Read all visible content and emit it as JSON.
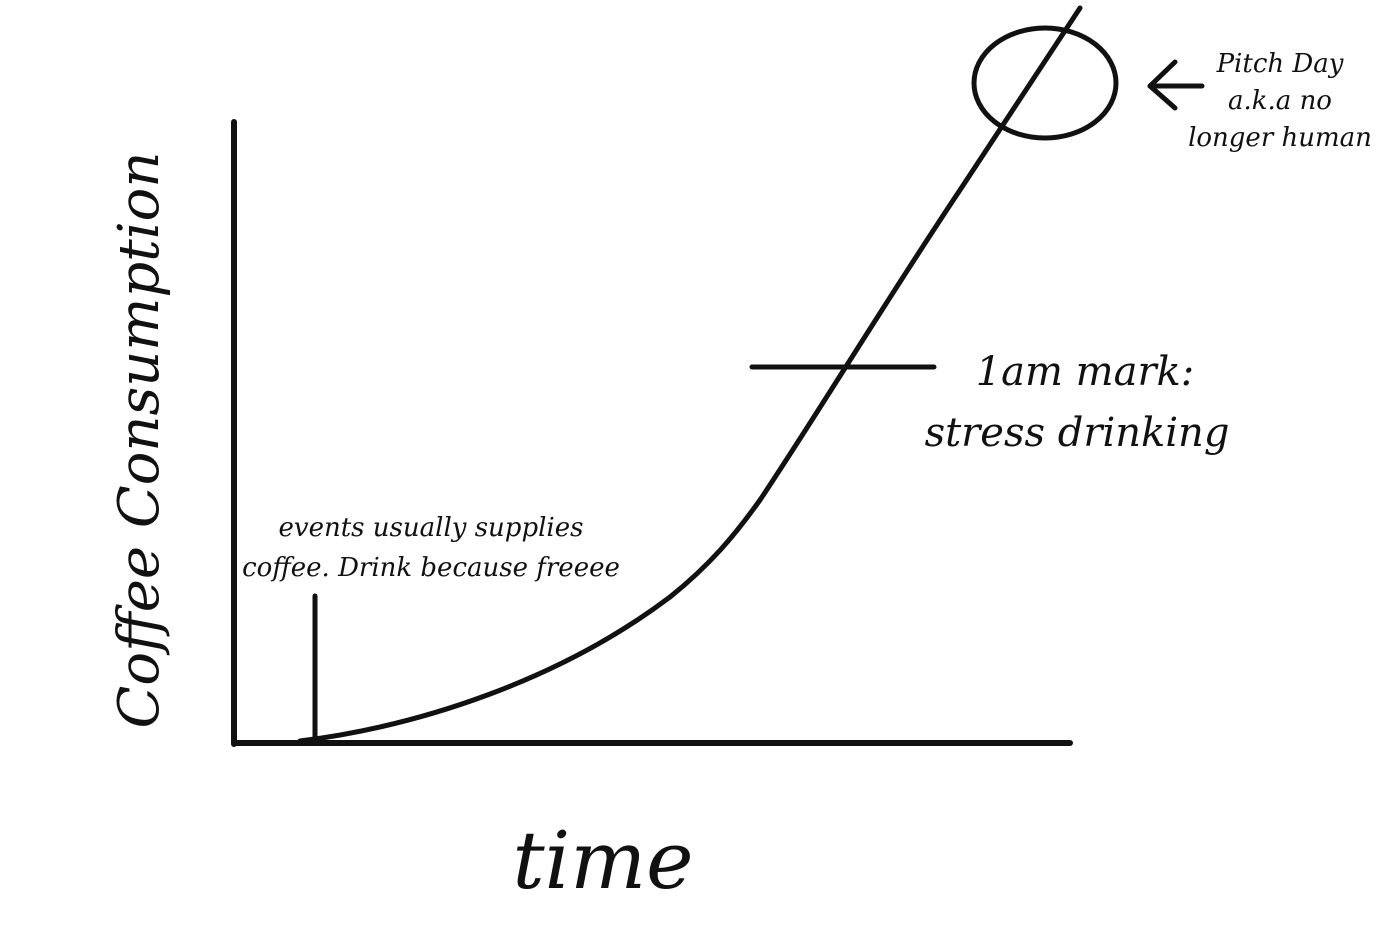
{
  "chart_data": {
    "type": "line",
    "xlabel": "time",
    "ylabel": "Coffee Consumption",
    "grid": false,
    "ink_color": "#111111",
    "background": "#ffffff",
    "annotations": {
      "events": {
        "line1": "events usually supplies",
        "line2": "coffee. Drink because freeee"
      },
      "one_am": {
        "line1": "1am mark:",
        "line2": "stress drinking"
      },
      "pitch_day": {
        "line1": "Pitch Day",
        "line2": "a.k.a no",
        "line3": "longer human"
      }
    }
  }
}
